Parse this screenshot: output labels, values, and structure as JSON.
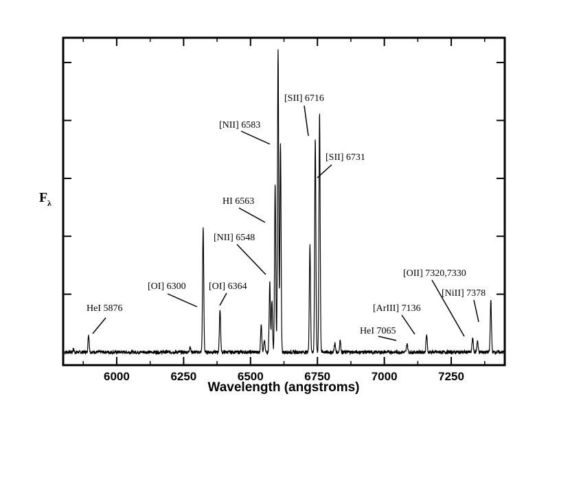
{
  "chart_data": {
    "type": "line",
    "title": "",
    "xlabel": "Wavelength (angstroms)",
    "ylabel": "F",
    "ylabel_subscript": "λ",
    "xlim": [
      5800,
      7450
    ],
    "ylim": [
      0,
      1.05
    ],
    "x_ticks": [
      6000,
      6250,
      6500,
      6750,
      7000,
      7250
    ],
    "x_tick_labels": [
      "6000",
      "6250",
      "6500",
      "6750",
      "7000",
      "7250"
    ],
    "y_ticks": [
      0.2,
      0.4,
      0.6,
      0.8,
      1.0
    ],
    "y_tick_labels_shown": false,
    "grid": false,
    "legend": "none",
    "continuum": 0.0,
    "series": [
      {
        "lines": [
          {
            "x": 5838,
            "height": 0.01
          },
          {
            "x": 5895,
            "height": 0.06
          },
          {
            "x": 6274,
            "height": 0.02
          },
          {
            "x": 6323,
            "height": 0.43
          },
          {
            "x": 6386,
            "height": 0.15
          },
          {
            "x": 6540,
            "height": 0.1
          },
          {
            "x": 6552,
            "height": 0.04
          },
          {
            "x": 6572,
            "height": 0.24
          },
          {
            "x": 6580,
            "height": 0.18
          },
          {
            "x": 6592,
            "height": 0.58
          },
          {
            "x": 6603,
            "height": 1.05
          },
          {
            "x": 6612,
            "height": 0.72
          },
          {
            "x": 6722,
            "height": 0.37
          },
          {
            "x": 6742,
            "height": 0.74
          },
          {
            "x": 6758,
            "height": 0.83
          },
          {
            "x": 6815,
            "height": 0.03
          },
          {
            "x": 6835,
            "height": 0.04
          },
          {
            "x": 7085,
            "height": 0.03
          },
          {
            "x": 7158,
            "height": 0.06
          },
          {
            "x": 7330,
            "height": 0.05
          },
          {
            "x": 7348,
            "height": 0.04
          },
          {
            "x": 7398,
            "height": 0.18
          }
        ]
      }
    ],
    "annotations": [
      {
        "text": "HeI 5876"
      },
      {
        "text": "[OI] 6300"
      },
      {
        "text": "[OI] 6364"
      },
      {
        "text": "[NII] 6548"
      },
      {
        "text": "HI 6563"
      },
      {
        "text": "[NII] 6583"
      },
      {
        "text": "[SII] 6716"
      },
      {
        "text": "[SII] 6731"
      },
      {
        "text": "HeI 7065"
      },
      {
        "text": "[ArIII] 7136"
      },
      {
        "text": "[OII] 7320,7330"
      },
      {
        "text": "[NiII] 7378"
      }
    ]
  }
}
